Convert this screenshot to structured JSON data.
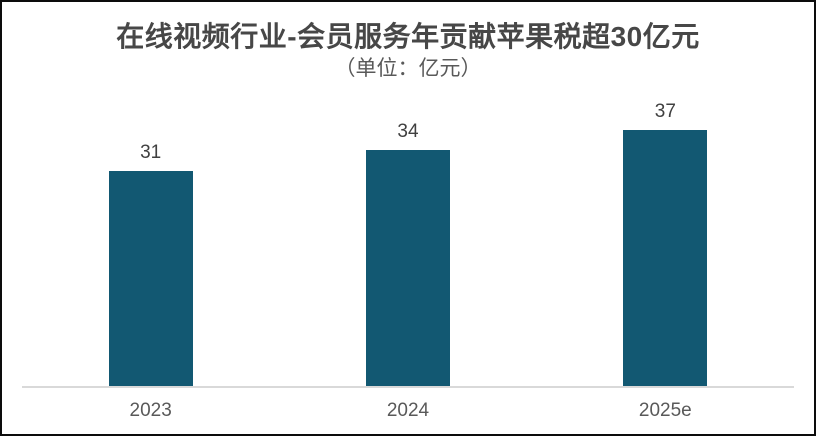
{
  "chart_data": {
    "type": "bar",
    "title": "在线视频行业-会员服务年贡献苹果税超30亿元",
    "subtitle": "（单位：亿元）",
    "categories": [
      "2023",
      "2024",
      "2025e"
    ],
    "values": [
      31,
      34,
      37
    ],
    "data_labels": [
      "31",
      "34",
      "37"
    ],
    "xlabel": "",
    "ylabel": "",
    "ylim": [
      0,
      40
    ],
    "grid": false,
    "legend": "none",
    "y_axis_visible": false,
    "colors": {
      "bar": "#125872",
      "axis_line": "#d9d9d9",
      "title": "#474747",
      "subtitle": "#595959",
      "value_label": "#404040",
      "tick_label": "#595959",
      "frame_border": "#0c0c0c",
      "background": "#ffffff"
    }
  }
}
